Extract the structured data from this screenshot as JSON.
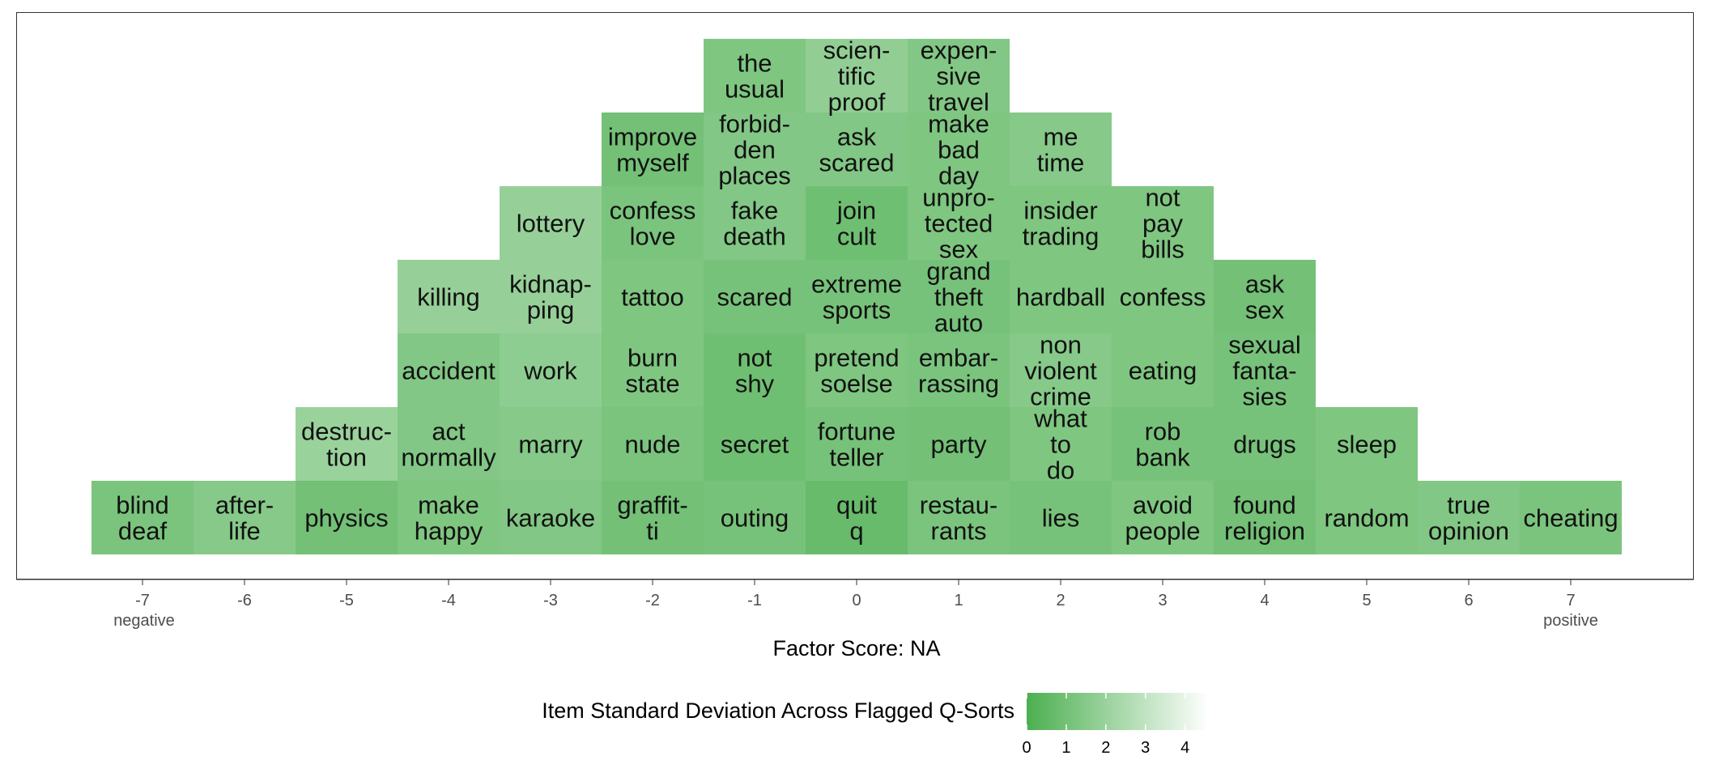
{
  "chart_data": {
    "type": "heatmap",
    "description_kind": "Q-sort factor array",
    "x_ticks": [
      -7,
      -6,
      -5,
      -4,
      -3,
      -2,
      -1,
      0,
      1,
      2,
      3,
      4,
      5,
      6,
      7
    ],
    "x_end_labels": {
      "left": "negative",
      "right": "positive"
    },
    "xlabel": "Factor Score: NA",
    "legend": {
      "title": "Item Standard Deviation Across Flagged Q-Sorts",
      "ticks": [
        0,
        1,
        2,
        3,
        4
      ],
      "range": [
        0,
        4.6
      ],
      "color_low": "#4caf50",
      "color_high": "#ffffff",
      "placement": "bottom"
    },
    "columns": [
      {
        "score": -7,
        "items": [
          {
            "label": "blind deaf",
            "lines": [
              "blind",
              "deaf"
            ],
            "sd": 1.2
          }
        ]
      },
      {
        "score": -6,
        "items": [
          {
            "label": "after-life",
            "lines": [
              "after-",
              "life"
            ],
            "sd": 1.5
          }
        ]
      },
      {
        "score": -5,
        "items": [
          {
            "label": "physics",
            "lines": [
              "physics"
            ],
            "sd": 1.0
          },
          {
            "label": "destruc-tion",
            "lines": [
              "destruc-",
              "tion"
            ],
            "sd": 2.0
          }
        ]
      },
      {
        "score": -4,
        "items": [
          {
            "label": "make happy",
            "lines": [
              "make",
              "happy"
            ],
            "sd": 1.3
          },
          {
            "label": "act normally",
            "lines": [
              "act",
              "normally"
            ],
            "sd": 1.4
          },
          {
            "label": "accident",
            "lines": [
              "accident"
            ],
            "sd": 1.4
          },
          {
            "label": "killing",
            "lines": [
              "killing"
            ],
            "sd": 1.9
          }
        ]
      },
      {
        "score": -3,
        "items": [
          {
            "label": "karaoke",
            "lines": [
              "karaoke"
            ],
            "sd": 1.4
          },
          {
            "label": "marry",
            "lines": [
              "marry"
            ],
            "sd": 1.5
          },
          {
            "label": "work",
            "lines": [
              "work"
            ],
            "sd": 1.7
          },
          {
            "label": "kidnap-ping",
            "lines": [
              "kidnap-",
              "ping"
            ],
            "sd": 1.9
          },
          {
            "label": "lottery",
            "lines": [
              "lottery"
            ],
            "sd": 1.9
          }
        ]
      },
      {
        "score": -2,
        "items": [
          {
            "label": "graffit-ti",
            "lines": [
              "graffit-",
              "ti"
            ],
            "sd": 1.0
          },
          {
            "label": "nude",
            "lines": [
              "nude"
            ],
            "sd": 1.2
          },
          {
            "label": "burn state",
            "lines": [
              "burn",
              "state"
            ],
            "sd": 1.3
          },
          {
            "label": "tattoo",
            "lines": [
              "tattoo"
            ],
            "sd": 1.3
          },
          {
            "label": "confess love",
            "lines": [
              "confess",
              "love"
            ],
            "sd": 1.2
          },
          {
            "label": "improve myself",
            "lines": [
              "improve",
              "myself"
            ],
            "sd": 1.0
          }
        ]
      },
      {
        "score": -1,
        "items": [
          {
            "label": "outing",
            "lines": [
              "outing"
            ],
            "sd": 1.1
          },
          {
            "label": "secret",
            "lines": [
              "secret"
            ],
            "sd": 0.9
          },
          {
            "label": "not shy",
            "lines": [
              "not",
              "shy"
            ],
            "sd": 0.9
          },
          {
            "label": "scared",
            "lines": [
              "scared"
            ],
            "sd": 1.1
          },
          {
            "label": "fake death",
            "lines": [
              "fake",
              "death"
            ],
            "sd": 1.4
          },
          {
            "label": "forbid-den places",
            "lines": [
              "forbid-",
              "den",
              "places"
            ],
            "sd": 1.4
          },
          {
            "label": "the usual",
            "lines": [
              "the",
              "usual"
            ],
            "sd": 1.3
          }
        ]
      },
      {
        "score": 0,
        "items": [
          {
            "label": "quit q",
            "lines": [
              "quit",
              "q"
            ],
            "sd": 0.7
          },
          {
            "label": "fortune teller",
            "lines": [
              "fortune",
              "teller"
            ],
            "sd": 1.1
          },
          {
            "label": "pretend soelse",
            "lines": [
              "pretend",
              "soelse"
            ],
            "sd": 1.3
          },
          {
            "label": "extreme sports",
            "lines": [
              "extreme",
              "sports"
            ],
            "sd": 1.1
          },
          {
            "label": "join cult",
            "lines": [
              "join",
              "cult"
            ],
            "sd": 0.9
          },
          {
            "label": "ask scared",
            "lines": [
              "ask",
              "scared"
            ],
            "sd": 1.4
          },
          {
            "label": "scien-tific proof",
            "lines": [
              "scien-",
              "tific",
              "proof"
            ],
            "sd": 1.8
          }
        ]
      },
      {
        "score": 1,
        "items": [
          {
            "label": "restau-rants",
            "lines": [
              "restau-",
              "rants"
            ],
            "sd": 1.2
          },
          {
            "label": "party",
            "lines": [
              "party"
            ],
            "sd": 1.0
          },
          {
            "label": "embar-rassing",
            "lines": [
              "embar-",
              "rassing"
            ],
            "sd": 1.2
          },
          {
            "label": "grand theft auto",
            "lines": [
              "grand",
              "theft",
              "auto"
            ],
            "sd": 1.1
          },
          {
            "label": "unpro-tected sex",
            "lines": [
              "unpro-",
              "tected",
              "sex"
            ],
            "sd": 1.3
          },
          {
            "label": "make bad day",
            "lines": [
              "make",
              "bad",
              "day"
            ],
            "sd": 1.3
          },
          {
            "label": "expen-sive travel",
            "lines": [
              "expen-",
              "sive",
              "travel"
            ],
            "sd": 1.4
          }
        ]
      },
      {
        "score": 2,
        "items": [
          {
            "label": "lies",
            "lines": [
              "lies"
            ],
            "sd": 1.1
          },
          {
            "label": "what to do",
            "lines": [
              "what",
              "to",
              "do"
            ],
            "sd": 1.3
          },
          {
            "label": "non violent crime",
            "lines": [
              "non",
              "violent",
              "crime"
            ],
            "sd": 1.5
          },
          {
            "label": "hardball",
            "lines": [
              "hardball"
            ],
            "sd": 1.3
          },
          {
            "label": "insider trading",
            "lines": [
              "insider",
              "trading"
            ],
            "sd": 1.3
          },
          {
            "label": "me time",
            "lines": [
              "me",
              "time"
            ],
            "sd": 1.5
          }
        ]
      },
      {
        "score": 3,
        "items": [
          {
            "label": "avoid people",
            "lines": [
              "avoid",
              "people"
            ],
            "sd": 1.3
          },
          {
            "label": "rob bank",
            "lines": [
              "rob",
              "bank"
            ],
            "sd": 1.1
          },
          {
            "label": "eating",
            "lines": [
              "eating"
            ],
            "sd": 1.3
          },
          {
            "label": "confess",
            "lines": [
              "confess"
            ],
            "sd": 1.3
          },
          {
            "label": "not pay bills",
            "lines": [
              "not",
              "pay",
              "bills"
            ],
            "sd": 1.3
          }
        ]
      },
      {
        "score": 4,
        "items": [
          {
            "label": "found religion",
            "lines": [
              "found",
              "religion"
            ],
            "sd": 1.0
          },
          {
            "label": "drugs",
            "lines": [
              "drugs"
            ],
            "sd": 1.1
          },
          {
            "label": "sexual fanta-sies",
            "lines": [
              "sexual",
              "fanta-",
              "sies"
            ],
            "sd": 1.1
          },
          {
            "label": "ask sex",
            "lines": [
              "ask",
              "sex"
            ],
            "sd": 1.0
          }
        ]
      },
      {
        "score": 5,
        "items": [
          {
            "label": "random",
            "lines": [
              "random"
            ],
            "sd": 1.3
          },
          {
            "label": "sleep",
            "lines": [
              "sleep"
            ],
            "sd": 1.3
          }
        ]
      },
      {
        "score": 6,
        "items": [
          {
            "label": "true opinion",
            "lines": [
              "true",
              "opinion"
            ],
            "sd": 1.4
          }
        ]
      },
      {
        "score": 7,
        "items": [
          {
            "label": "cheating",
            "lines": [
              "cheating"
            ],
            "sd": 1.2
          }
        ]
      }
    ]
  }
}
